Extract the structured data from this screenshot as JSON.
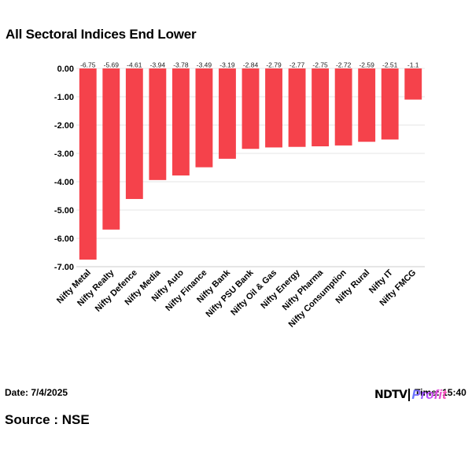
{
  "footer": {
    "date_label": "Date: 7/4/2025",
    "time_label": "Time: 15:40",
    "source_label": "Source : NSE",
    "logo_primary": "NDTV",
    "logo_secondary": "Profit"
  },
  "colors": {
    "bar": "#f5424b",
    "grid": "#e6e6e6",
    "axis": "#333333"
  },
  "chart_data": {
    "type": "bar",
    "title": "All Sectoral Indices End Lower",
    "xlabel": "",
    "ylabel": "",
    "ylim": [
      -7,
      0
    ],
    "yticks": [
      0,
      -1,
      -2,
      -3,
      -4,
      -5,
      -6,
      -7
    ],
    "ytick_labels": [
      "0.00",
      "-1.00",
      "-2.00",
      "-3.00",
      "-4.00",
      "-5.00",
      "-6.00",
      "-7.00"
    ],
    "grid": true,
    "categories": [
      "Nifty Metal",
      "Nifty Realty",
      "Nifty Defence",
      "Nifty Media",
      "Nifty Auto",
      "Nifty Finance",
      "Nifty Bank",
      "Nifty PSU Bank",
      "Nifty Oil & Gas",
      "Nifty Energy",
      "Nifty Pharma",
      "Nifty Consumption",
      "Nifty Rural",
      "Nifty IT",
      "Nifty FMCG"
    ],
    "values": [
      -6.75,
      -5.69,
      -4.61,
      -3.94,
      -3.78,
      -3.49,
      -3.19,
      -2.84,
      -2.79,
      -2.77,
      -2.75,
      -2.72,
      -2.59,
      -2.51,
      -1.1
    ],
    "data_labels": [
      "-6.75",
      "-5.69",
      "-4.61",
      "-3.94",
      "-3.78",
      "-3.49",
      "-3.19",
      "-2.84",
      "-2.79",
      "-2.77",
      "-2.75",
      "-2.72",
      "-2.59",
      "-2.51",
      "-1.1"
    ]
  }
}
